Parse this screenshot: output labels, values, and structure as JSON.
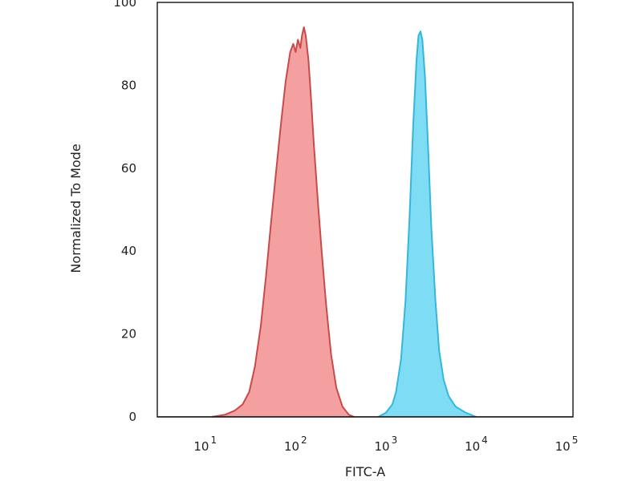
{
  "chart_data": {
    "type": "area",
    "xlabel": "FITC-A",
    "ylabel": "Normalized To Mode",
    "xscale": "log",
    "xlim": [
      2.5,
      100000
    ],
    "ylim": [
      0,
      100
    ],
    "yticks": [
      0,
      20,
      40,
      60,
      80,
      100
    ],
    "xticks": [
      {
        "value": 10,
        "base": "10",
        "exp": "1"
      },
      {
        "value": 100,
        "base": "10",
        "exp": "2"
      },
      {
        "value": 1000,
        "base": "10",
        "exp": "3"
      },
      {
        "value": 10000,
        "base": "10",
        "exp": "4"
      },
      {
        "value": 100000,
        "base": "10",
        "exp": "5"
      }
    ],
    "grid": false,
    "legend": "none",
    "series": [
      {
        "color_fill": "#f4a0a0",
        "color_line": "#c84b4b",
        "points": [
          [
            10,
            0
          ],
          [
            14,
            0.5
          ],
          [
            18,
            1.5
          ],
          [
            22,
            3
          ],
          [
            26,
            6
          ],
          [
            30,
            12
          ],
          [
            35,
            22
          ],
          [
            40,
            34
          ],
          [
            45,
            46
          ],
          [
            50,
            56
          ],
          [
            58,
            70
          ],
          [
            66,
            81
          ],
          [
            74,
            88
          ],
          [
            80,
            90
          ],
          [
            85,
            88
          ],
          [
            90,
            91
          ],
          [
            96,
            89
          ],
          [
            100,
            92
          ],
          [
            105,
            94
          ],
          [
            110,
            92
          ],
          [
            118,
            86
          ],
          [
            125,
            78
          ],
          [
            135,
            66
          ],
          [
            150,
            52
          ],
          [
            165,
            40
          ],
          [
            185,
            27
          ],
          [
            210,
            15
          ],
          [
            240,
            7
          ],
          [
            280,
            2.5
          ],
          [
            330,
            0.5
          ],
          [
            380,
            0
          ]
        ]
      },
      {
        "color_fill": "#7fdcf5",
        "color_line": "#36b6da",
        "points": [
          [
            700,
            0
          ],
          [
            850,
            1
          ],
          [
            1000,
            3
          ],
          [
            1100,
            6
          ],
          [
            1250,
            14
          ],
          [
            1400,
            28
          ],
          [
            1550,
            48
          ],
          [
            1700,
            70
          ],
          [
            1850,
            86
          ],
          [
            1950,
            92
          ],
          [
            2050,
            93
          ],
          [
            2150,
            91
          ],
          [
            2300,
            82
          ],
          [
            2500,
            64
          ],
          [
            2700,
            46
          ],
          [
            3000,
            28
          ],
          [
            3300,
            16
          ],
          [
            3700,
            9
          ],
          [
            4200,
            5
          ],
          [
            5000,
            2.5
          ],
          [
            6500,
            1
          ],
          [
            8500,
            0
          ]
        ]
      }
    ]
  }
}
